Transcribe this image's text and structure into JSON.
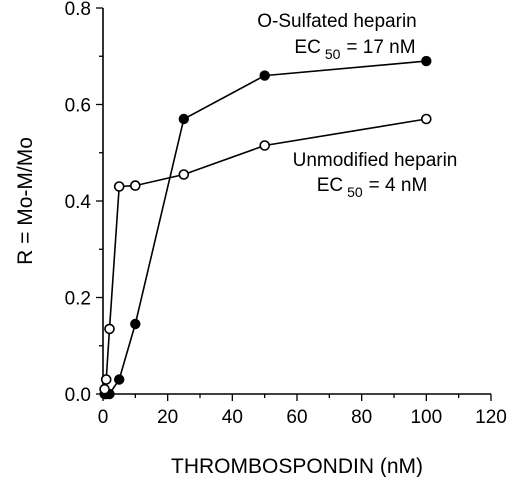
{
  "chart_data": {
    "type": "line",
    "xlabel": "THROMBOSPONDIN  (nM)",
    "ylabel": "R = Mo-M/Mo",
    "xlim": [
      0,
      120
    ],
    "ylim": [
      0,
      0.8
    ],
    "x_ticks": [
      "0",
      "20",
      "40",
      "60",
      "80",
      "100",
      "120"
    ],
    "y_ticks": [
      "0.0",
      "0.2",
      "0.4",
      "0.6",
      "0.8"
    ],
    "grid": false,
    "series": [
      {
        "marker": "filled-circle",
        "x": [
          0.5,
          1,
          2,
          5,
          10,
          25,
          50,
          100
        ],
        "y": [
          0.0,
          0.0,
          0.0,
          0.03,
          0.145,
          0.57,
          0.66,
          0.69
        ],
        "annotation": {
          "line1": "O-Sulfated heparin",
          "ec_prefix": "EC",
          "ec_sub": "50",
          "ec_value": "= 17 nM"
        }
      },
      {
        "marker": "open-circle",
        "x": [
          0.5,
          1,
          2,
          5,
          10,
          25,
          50,
          100
        ],
        "y": [
          0.01,
          0.03,
          0.135,
          0.43,
          0.432,
          0.455,
          0.515,
          0.57
        ],
        "annotation": {
          "line1": "Unmodified heparin",
          "ec_prefix": "EC",
          "ec_sub": "50",
          "ec_value": "= 4 nM"
        }
      }
    ]
  }
}
